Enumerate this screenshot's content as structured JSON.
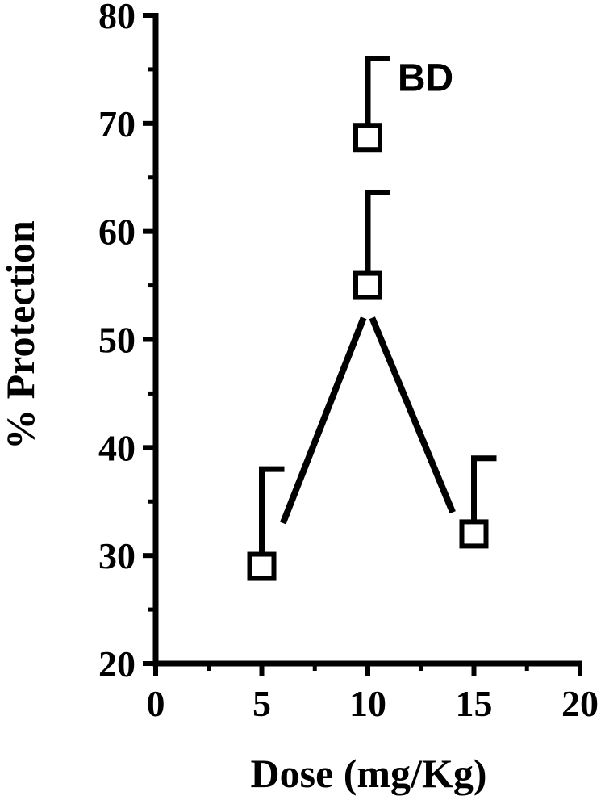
{
  "chart_data": {
    "type": "scatter",
    "xlabel": "Dose (mg/Kg)",
    "ylabel": "% Protection",
    "xlim": [
      0,
      20
    ],
    "ylim": [
      20,
      80
    ],
    "x_ticks": [
      0,
      5,
      10,
      15,
      20
    ],
    "y_ticks": [
      20,
      30,
      40,
      50,
      60,
      70,
      80
    ],
    "x_tick_labels": [
      "0",
      "5",
      "10",
      "15",
      "20"
    ],
    "y_tick_labels": [
      "20",
      "30",
      "40",
      "50",
      "60",
      "70",
      "80"
    ],
    "grid": false,
    "points": [
      {
        "x": 5,
        "y": 29,
        "error_upper": 38
      },
      {
        "x": 10,
        "y": 55,
        "error_upper": 63.6
      },
      {
        "x": 10,
        "y": 68.7,
        "error_upper": 76
      },
      {
        "x": 15,
        "y": 32,
        "error_upper": 39
      }
    ],
    "connecting_line": [
      {
        "x": 6,
        "y": 33
      },
      {
        "x": 9.8,
        "y": 52
      },
      {
        "x": 10.2,
        "y": 52
      },
      {
        "x": 14,
        "y": 34
      }
    ],
    "annotations": [
      {
        "text": "BD",
        "x": 11.4,
        "y": 73
      }
    ]
  }
}
